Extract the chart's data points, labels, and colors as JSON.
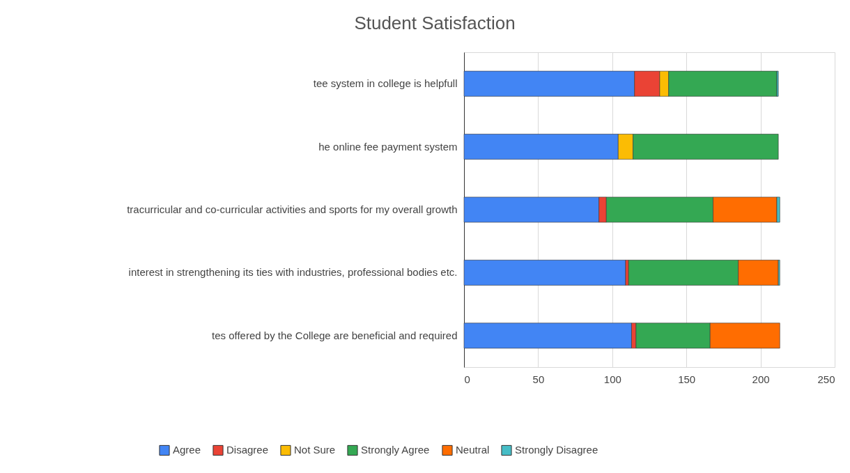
{
  "chart_data": {
    "type": "bar",
    "orientation": "horizontal",
    "stacked": true,
    "title": "Student Satisfaction",
    "categories": [
      "tee system in college is helpfull",
      "he online fee payment system",
      "tracurricular and co-curricular activities and sports for my overall growth",
      "interest in strengthening its ties with industries, professional bodies etc.",
      "tes offered by the College are beneficial and required"
    ],
    "series": [
      {
        "name": "Agree",
        "color": "#4285f4",
        "values": [
          115,
          104,
          91,
          109,
          113
        ]
      },
      {
        "name": "Disagree",
        "color": "#ea4335",
        "values": [
          17,
          null,
          5,
          2,
          3
        ]
      },
      {
        "name": "Not Sure",
        "color": "#fbbc04",
        "values": [
          6,
          10,
          null,
          null,
          null
        ]
      },
      {
        "name": "Strongly Agree",
        "color": "#34a853",
        "values": [
          73,
          98,
          72,
          74,
          50
        ]
      },
      {
        "name": "Neutral",
        "color": "#ff6d01",
        "values": [
          null,
          null,
          43,
          27,
          47
        ]
      },
      {
        "name": "Strongly Disagree",
        "color": "#46bdc6",
        "values": [
          1,
          null,
          2,
          1,
          null
        ]
      }
    ],
    "xlim": [
      0,
      250
    ],
    "xticks": [
      0,
      50,
      100,
      150,
      200,
      250
    ],
    "grid": "x",
    "legend": "bottom"
  }
}
